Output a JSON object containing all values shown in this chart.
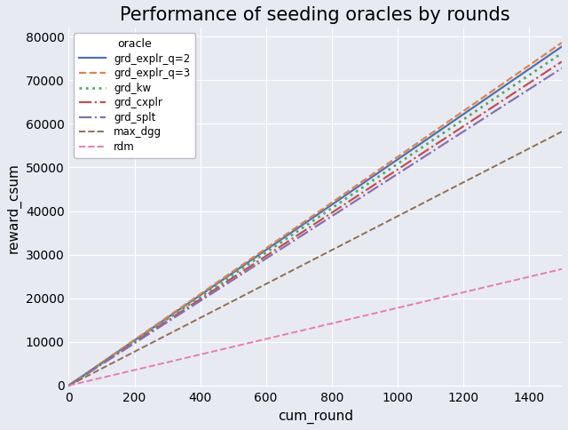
{
  "title": "Performance of seeding oracles by rounds",
  "xlabel": "cum_round",
  "ylabel": "reward_csum",
  "xlim": [
    0,
    1500
  ],
  "ylim": [
    -500,
    82000
  ],
  "xticks": [
    0,
    200,
    400,
    600,
    800,
    1000,
    1200,
    1400
  ],
  "yticks": [
    0,
    10000,
    20000,
    30000,
    40000,
    50000,
    60000,
    70000,
    80000
  ],
  "series": [
    {
      "label": "grd_explr_q=2",
      "color": "#4c72b0",
      "linestyle": "-",
      "linewidth": 1.6,
      "slope": 51.8,
      "intercept": 0
    },
    {
      "label": "grd_explr_q=3",
      "color": "#dd8452",
      "linestyle": "--",
      "linewidth": 1.6,
      "slope": 52.4,
      "intercept": 0
    },
    {
      "label": "grd_kw",
      "color": "#55a868",
      "linestyle": ":",
      "linewidth": 2.0,
      "slope": 50.8,
      "intercept": 0
    },
    {
      "label": "grd_cxplr",
      "color": "#c44e52",
      "linestyle": "-.",
      "linewidth": 1.6,
      "slope": 49.5,
      "intercept": 0
    },
    {
      "label": "grd_splt",
      "color": "#8172b2",
      "linestyle": "-.",
      "linewidth": 1.6,
      "slope": 48.5,
      "intercept": 0
    },
    {
      "label": "max_dgg",
      "color": "#8c7051",
      "linestyle": "--",
      "linewidth": 1.4,
      "slope": 38.8,
      "intercept": 0
    },
    {
      "label": "rdm",
      "color": "#e47ead",
      "linestyle": "--",
      "linewidth": 1.4,
      "slope": 17.8,
      "intercept": 0
    }
  ],
  "legend_title": "oracle",
  "bg_color": "#e8eaf2",
  "title_fontsize": 15,
  "label_fontsize": 11,
  "tick_fontsize": 10
}
